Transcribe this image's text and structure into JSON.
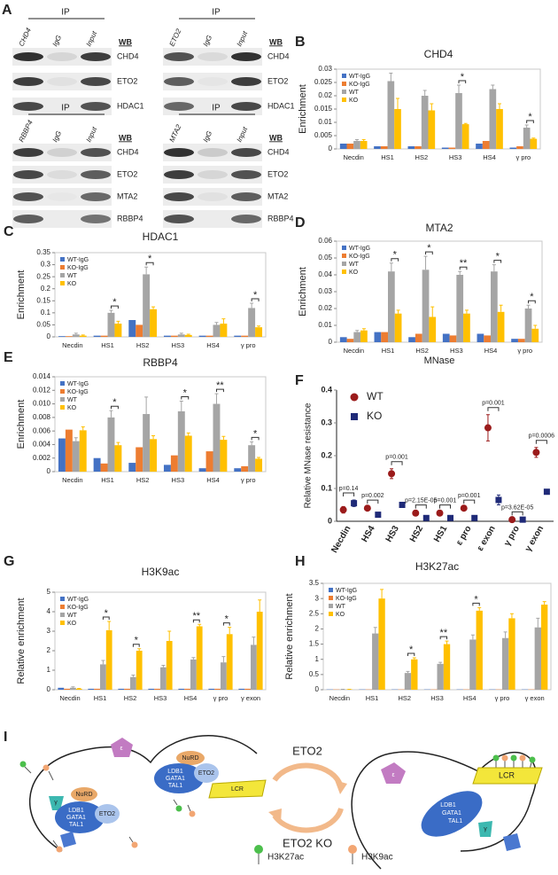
{
  "panel_labels": [
    "A",
    "B",
    "C",
    "D",
    "E",
    "F",
    "G",
    "H",
    "I"
  ],
  "blots": [
    {
      "ip": "IP",
      "lanes": [
        "CHD4",
        "IgG",
        "Input"
      ],
      "wb": "WB",
      "bands": [
        "CHD4",
        "ETO2",
        "HDAC1"
      ]
    },
    {
      "ip": "IP",
      "lanes": [
        "ETO2",
        "IgG",
        "Input"
      ],
      "wb": "WB",
      "bands": [
        "CHD4",
        "ETO2",
        "HDAC1"
      ]
    },
    {
      "ip": "IP",
      "lanes": [
        "RBBP4",
        "IgG",
        "Input"
      ],
      "wb": "WB",
      "bands": [
        "CHD4",
        "ETO2",
        "MTA2",
        "RBBP4"
      ]
    },
    {
      "ip": "IP",
      "lanes": [
        "MTA2",
        "IgG",
        "Input"
      ],
      "wb": "WB",
      "bands": [
        "CHD4",
        "ETO2",
        "MTA2",
        "RBBP4"
      ]
    }
  ],
  "chart_data": [
    {
      "type": "bar",
      "title": "CHD4",
      "y_label": "Enrichment",
      "categories": [
        "Necdin",
        "HS1",
        "HS2",
        "HS3",
        "HS4",
        "γ pro"
      ],
      "series": [
        {
          "name": "WT-IgG",
          "color": "#4472c4",
          "values": [
            0.002,
            0.001,
            0.001,
            0.0005,
            0.002,
            0.0005
          ]
        },
        {
          "name": "KO-IgG",
          "color": "#ed7d31",
          "values": [
            0.002,
            0.001,
            0.001,
            0.0005,
            0.003,
            0.001
          ]
        },
        {
          "name": "WT",
          "color": "#a5a5a5",
          "values": [
            0.003,
            0.0255,
            0.02,
            0.021,
            0.0225,
            0.008
          ],
          "errors": [
            0.0005,
            0.003,
            0.002,
            0.003,
            0.0015,
            0.001
          ]
        },
        {
          "name": "KO",
          "color": "#ffc000",
          "values": [
            0.003,
            0.015,
            0.0145,
            0.0093,
            0.015,
            0.0038
          ],
          "errors": [
            0.0005,
            0.004,
            0.0025,
            0.0003,
            0.002,
            0.0003
          ]
        }
      ],
      "significance": [
        null,
        null,
        null,
        "*",
        null,
        "*"
      ],
      "ylim": [
        0,
        0.03
      ],
      "yticks": [
        0,
        0.005,
        0.01,
        0.015,
        0.02,
        0.025,
        0.03
      ],
      "legend": "upper left"
    },
    {
      "type": "bar",
      "title": "HDAC1",
      "y_label": "Enrichment",
      "categories": [
        "Necdin",
        "HS1",
        "HS2",
        "HS3",
        "HS4",
        "γ pro"
      ],
      "series": [
        {
          "name": "WT-IgG",
          "color": "#4472c4",
          "values": [
            0.003,
            0.005,
            0.07,
            0.005,
            0.005,
            0.005
          ]
        },
        {
          "name": "KO-IgG",
          "color": "#ed7d31",
          "values": [
            0.003,
            0.005,
            0.05,
            0.005,
            0.005,
            0.005
          ]
        },
        {
          "name": "WT",
          "color": "#a5a5a5",
          "values": [
            0.01,
            0.1,
            0.26,
            0.01,
            0.05,
            0.12
          ],
          "errors": [
            0.005,
            0.01,
            0.03,
            0.005,
            0.01,
            0.02
          ]
        },
        {
          "name": "KO",
          "color": "#ffc000",
          "values": [
            0.005,
            0.055,
            0.115,
            0.008,
            0.055,
            0.04
          ],
          "errors": [
            0.003,
            0.01,
            0.01,
            0.003,
            0.02,
            0.005
          ]
        }
      ],
      "significance": [
        null,
        "*",
        "*",
        null,
        null,
        "*"
      ],
      "ylim": [
        0,
        0.35
      ],
      "yticks": [
        0,
        0.05,
        0.1,
        0.15,
        0.2,
        0.25,
        0.3,
        0.35
      ],
      "legend": "upper left"
    },
    {
      "type": "bar",
      "title": "MTA2",
      "y_label": "Enrichment",
      "x_label": "MNase",
      "categories": [
        "Necdin",
        "HS1",
        "HS2",
        "HS3",
        "HS4",
        "γ pro"
      ],
      "series": [
        {
          "name": "WT-IgG",
          "color": "#4472c4",
          "values": [
            0.003,
            0.006,
            0.003,
            0.005,
            0.005,
            0.002
          ]
        },
        {
          "name": "KO-IgG",
          "color": "#ed7d31",
          "values": [
            0.002,
            0.006,
            0.005,
            0.004,
            0.004,
            0.002
          ]
        },
        {
          "name": "WT",
          "color": "#a5a5a5",
          "values": [
            0.006,
            0.042,
            0.043,
            0.04,
            0.042,
            0.02
          ],
          "errors": [
            0.001,
            0.005,
            0.008,
            0.002,
            0.004,
            0.002
          ]
        },
        {
          "name": "KO",
          "color": "#ffc000",
          "values": [
            0.007,
            0.017,
            0.015,
            0.017,
            0.018,
            0.008
          ],
          "errors": [
            0.001,
            0.002,
            0.006,
            0.002,
            0.004,
            0.002
          ]
        }
      ],
      "significance": [
        null,
        "*",
        "*",
        "**",
        "*",
        "*"
      ],
      "ylim": [
        0,
        0.06
      ],
      "yticks": [
        0,
        0.01,
        0.02,
        0.03,
        0.04,
        0.05,
        0.06
      ],
      "legend": "upper left"
    },
    {
      "type": "bar",
      "title": "RBBP4",
      "y_label": "Enrichment",
      "categories": [
        "Necdin",
        "HS1",
        "HS2",
        "HS3",
        "HS4",
        "γ pro"
      ],
      "series": [
        {
          "name": "WT-IgG",
          "color": "#4472c4",
          "values": [
            0.0049,
            0.002,
            0.0013,
            0.001,
            0.0005,
            0.0005
          ]
        },
        {
          "name": "KO-IgG",
          "color": "#ed7d31",
          "values": [
            0.0062,
            0.0012,
            0.0036,
            0.0024,
            0.003,
            0.0008
          ]
        },
        {
          "name": "WT",
          "color": "#a5a5a5",
          "values": [
            0.0045,
            0.008,
            0.0085,
            0.0089,
            0.01,
            0.0039
          ],
          "errors": [
            0.0005,
            0.001,
            0.0025,
            0.0015,
            0.0015,
            0.0005
          ]
        },
        {
          "name": "KO",
          "color": "#ffc000",
          "values": [
            0.0061,
            0.0039,
            0.0048,
            0.0053,
            0.0047,
            0.0019
          ],
          "errors": [
            0.0005,
            0.0004,
            0.0005,
            0.0004,
            0.0005,
            0.0002
          ]
        }
      ],
      "significance": [
        null,
        "*",
        null,
        "*",
        "**",
        "*"
      ],
      "ylim": [
        0,
        0.014
      ],
      "yticks": [
        0,
        0.002,
        0.004,
        0.006,
        0.008,
        {
          "value": 0.01,
          "label": "0.010"
        },
        0.012,
        0.014
      ],
      "legend": "upper left"
    },
    {
      "type": "scatter",
      "y_label": "Relative MNase resistance",
      "categories": [
        "Necdin",
        "HS4",
        "HS3",
        "HS2",
        "HS1",
        "ε pro",
        "ε exon",
        "γ pro",
        "γ exon"
      ],
      "series": [
        {
          "name": "WT",
          "color": "#9b1b1b",
          "marker": "circle",
          "values": [
            0.035,
            0.04,
            0.145,
            0.025,
            0.025,
            0.04,
            0.285,
            0.005,
            0.21
          ],
          "errors": [
            0.01,
            0.003,
            0.015,
            0.003,
            0.003,
            0.003,
            0.04,
            0.002,
            0.015
          ]
        },
        {
          "name": "KO",
          "color": "#1f2a78",
          "marker": "square",
          "values": [
            0.055,
            0.02,
            0.05,
            0.01,
            0.01,
            0.01,
            0.065,
            0.005,
            0.09
          ],
          "errors": [
            0.01,
            0.003,
            0.004,
            0.002,
            0.002,
            0.002,
            0.015,
            0.002,
            0.005
          ]
        }
      ],
      "annotations": [
        "p=0.14",
        "p=0.002",
        "p=0.001",
        "p=2.15E-05",
        "p=0.001",
        "p=0.001",
        "p=0.001",
        "p=3.62E-05",
        "p=0.0006"
      ],
      "ylim": [
        0,
        0.4
      ],
      "yticks": [
        0,
        0.1,
        0.2,
        0.3,
        0.4
      ],
      "legend": "upper left"
    },
    {
      "type": "bar",
      "title": "H3K9ac",
      "y_label": "Relative enrichment",
      "categories": [
        "Necdin",
        "HS1",
        "HS2",
        "HS3",
        "HS4",
        "γ pro",
        "γ exon"
      ],
      "series": [
        {
          "name": "WT-IgG",
          "color": "#4472c4",
          "values": [
            0.1,
            0.05,
            0.05,
            0.05,
            0.05,
            0.05,
            0.05
          ]
        },
        {
          "name": "KO-IgG",
          "color": "#ed7d31",
          "values": [
            0.05,
            0.05,
            0.05,
            0.05,
            0.05,
            0.05,
            0.05
          ]
        },
        {
          "name": "WT",
          "color": "#a5a5a5",
          "values": [
            0.1,
            1.3,
            0.65,
            1.15,
            1.55,
            1.4,
            2.3
          ],
          "errors": [
            0.05,
            0.2,
            0.1,
            0.1,
            0.1,
            0.3,
            0.4
          ]
        },
        {
          "name": "KO",
          "color": "#ffc000",
          "values": [
            0.05,
            3.05,
            2.0,
            2.5,
            3.25,
            2.85,
            4.0
          ],
          "errors": [
            0.02,
            0.45,
            0.1,
            0.5,
            0.1,
            0.35,
            0.6
          ]
        }
      ],
      "significance": [
        null,
        "*",
        "*",
        null,
        "**",
        "*",
        null
      ],
      "ylim": [
        0,
        5
      ],
      "yticks": [
        0,
        1,
        2,
        3,
        4,
        5
      ],
      "legend": "upper left"
    },
    {
      "type": "bar",
      "title": "H3K27ac",
      "y_label": "Relative enrichment",
      "categories": [
        "Necdin",
        "HS1",
        "HS2",
        "HS3",
        "HS4",
        "γ pro",
        "γ exon"
      ],
      "series": [
        {
          "name": "WT-IgG",
          "color": "#4472c4",
          "values": [
            0.01,
            0.01,
            0.01,
            0.01,
            0.01,
            0.01,
            0.01
          ]
        },
        {
          "name": "KO-IgG",
          "color": "#ed7d31",
          "values": [
            0.01,
            0.01,
            0.01,
            0.01,
            0.01,
            0.01,
            0.01
          ]
        },
        {
          "name": "WT",
          "color": "#a5a5a5",
          "values": [
            0.01,
            1.85,
            0.55,
            0.85,
            1.65,
            1.7,
            2.05
          ],
          "errors": [
            0.005,
            0.2,
            0.05,
            0.05,
            0.15,
            0.2,
            0.3
          ]
        },
        {
          "name": "KO",
          "color": "#ffc000",
          "values": [
            0.01,
            3.0,
            1.0,
            1.5,
            2.6,
            2.35,
            2.8
          ],
          "errors": [
            0.005,
            0.3,
            0.05,
            0.1,
            0.1,
            0.15,
            0.1
          ]
        }
      ],
      "significance": [
        null,
        null,
        "*",
        "**",
        "*",
        null,
        null
      ],
      "ylim": [
        0,
        3.5
      ],
      "yticks": [
        0,
        0.5,
        1,
        1.5,
        2,
        2.5,
        3,
        3.5
      ],
      "legend": "upper left"
    }
  ],
  "diagram": {
    "top_arrow_label": "ETO2",
    "bottom_arrow_label": "ETO2 KO",
    "legend": [
      "H3K27ac",
      "H3K9ac"
    ],
    "left": {
      "epsilon": "ε",
      "gamma": "γ",
      "nurd_top": "NuRD",
      "nurd_left": "NuRD",
      "complex_top": [
        "LDB1",
        "GATA1",
        "TAL1"
      ],
      "eto2_top": "ETO2",
      "lcr": "LCR",
      "complex_left": [
        "LDB1",
        "GATA1",
        "TAL1"
      ],
      "eto2_left": "ETO2"
    },
    "right": {
      "epsilon": "ε",
      "complex": [
        "LDB1",
        "GATA1",
        "TAL1"
      ],
      "lcr": "LCR",
      "gamma": "γ"
    }
  }
}
